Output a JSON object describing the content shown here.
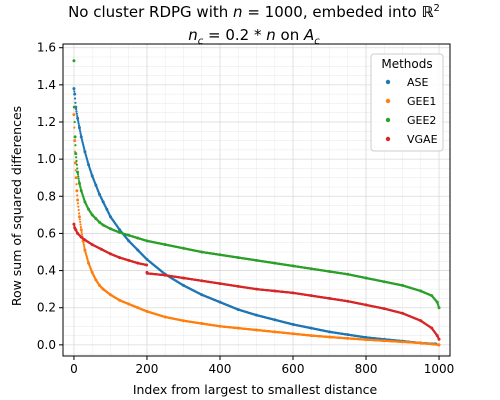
{
  "chart_data": {
    "type": "scatter",
    "title_line1_prefix": "No cluster RDPG with ",
    "title_line1_n": "n",
    "title_line1_eq": " = 1000, embeded into ",
    "title_line1_space": "ℝ",
    "title_line1_sup": "2",
    "title_line2_var": "n",
    "title_line2_sub": "c",
    "title_line2_mid": " = 0.2 * ",
    "title_line2_n": "n",
    "title_line2_on": " on ",
    "title_line2_A": "A",
    "title_line2_Asub": "c",
    "xlabel": "Index from largest to smallest distance",
    "ylabel": "Row sum of squared differences",
    "xlim": [
      -30,
      1030
    ],
    "ylim": [
      -0.06,
      1.62
    ],
    "xticks": [
      0,
      200,
      400,
      600,
      800,
      1000
    ],
    "yticks": [
      0.0,
      0.2,
      0.4,
      0.6,
      0.8,
      1.0,
      1.2,
      1.4,
      1.6
    ],
    "ytick_labels": [
      "0.0",
      "0.2",
      "0.4",
      "0.6",
      "0.8",
      "1.0",
      "1.2",
      "1.4",
      "1.6"
    ],
    "grid": true,
    "legend_title": "Methods",
    "legend_position": "top-right",
    "series": [
      {
        "name": "ASE",
        "color": "#1f77b4",
        "points": [
          [
            0,
            1.38
          ],
          [
            2,
            1.35
          ],
          [
            5,
            1.28
          ],
          [
            10,
            1.22
          ],
          [
            15,
            1.17
          ],
          [
            20,
            1.12
          ],
          [
            30,
            1.04
          ],
          [
            40,
            0.97
          ],
          [
            50,
            0.91
          ],
          [
            60,
            0.86
          ],
          [
            70,
            0.81
          ],
          [
            80,
            0.77
          ],
          [
            90,
            0.73
          ],
          [
            100,
            0.69
          ],
          [
            125,
            0.62
          ],
          [
            150,
            0.56
          ],
          [
            175,
            0.51
          ],
          [
            200,
            0.46
          ],
          [
            250,
            0.38
          ],
          [
            300,
            0.32
          ],
          [
            350,
            0.27
          ],
          [
            400,
            0.23
          ],
          [
            450,
            0.19
          ],
          [
            500,
            0.16
          ],
          [
            550,
            0.135
          ],
          [
            600,
            0.11
          ],
          [
            650,
            0.09
          ],
          [
            700,
            0.07
          ],
          [
            750,
            0.055
          ],
          [
            800,
            0.04
          ],
          [
            850,
            0.03
          ],
          [
            900,
            0.02
          ],
          [
            950,
            0.01
          ],
          [
            990,
            0.005
          ],
          [
            999,
            0.0
          ]
        ]
      },
      {
        "name": "GEE1",
        "color": "#ff7f0e",
        "points": [
          [
            0,
            1.24
          ],
          [
            2,
            1.1
          ],
          [
            4,
            0.98
          ],
          [
            6,
            0.9
          ],
          [
            8,
            0.83
          ],
          [
            10,
            0.78
          ],
          [
            15,
            0.69
          ],
          [
            20,
            0.62
          ],
          [
            25,
            0.56
          ],
          [
            30,
            0.51
          ],
          [
            40,
            0.44
          ],
          [
            50,
            0.39
          ],
          [
            60,
            0.35
          ],
          [
            70,
            0.32
          ],
          [
            80,
            0.3
          ],
          [
            100,
            0.27
          ],
          [
            125,
            0.24
          ],
          [
            150,
            0.22
          ],
          [
            175,
            0.2
          ],
          [
            200,
            0.18
          ],
          [
            250,
            0.15
          ],
          [
            300,
            0.13
          ],
          [
            350,
            0.115
          ],
          [
            400,
            0.1
          ],
          [
            450,
            0.09
          ],
          [
            500,
            0.08
          ],
          [
            550,
            0.07
          ],
          [
            600,
            0.06
          ],
          [
            650,
            0.05
          ],
          [
            700,
            0.042
          ],
          [
            750,
            0.035
          ],
          [
            800,
            0.028
          ],
          [
            850,
            0.022
          ],
          [
            900,
            0.016
          ],
          [
            950,
            0.01
          ],
          [
            1000,
            0.0
          ]
        ]
      },
      {
        "name": "GEE2",
        "color": "#2ca02c",
        "points": [
          [
            0,
            1.53
          ],
          [
            1,
            1.28
          ],
          [
            3,
            1.12
          ],
          [
            5,
            1.03
          ],
          [
            10,
            0.93
          ],
          [
            15,
            0.87
          ],
          [
            20,
            0.83
          ],
          [
            30,
            0.77
          ],
          [
            40,
            0.73
          ],
          [
            50,
            0.7
          ],
          [
            60,
            0.68
          ],
          [
            70,
            0.66
          ],
          [
            80,
            0.645
          ],
          [
            100,
            0.625
          ],
          [
            125,
            0.605
          ],
          [
            150,
            0.59
          ],
          [
            175,
            0.575
          ],
          [
            200,
            0.56
          ],
          [
            250,
            0.54
          ],
          [
            300,
            0.52
          ],
          [
            350,
            0.5
          ],
          [
            400,
            0.485
          ],
          [
            450,
            0.47
          ],
          [
            500,
            0.455
          ],
          [
            550,
            0.44
          ],
          [
            600,
            0.425
          ],
          [
            650,
            0.41
          ],
          [
            700,
            0.395
          ],
          [
            750,
            0.38
          ],
          [
            800,
            0.36
          ],
          [
            850,
            0.34
          ],
          [
            900,
            0.32
          ],
          [
            950,
            0.29
          ],
          [
            980,
            0.265
          ],
          [
            995,
            0.23
          ],
          [
            1000,
            0.2
          ]
        ]
      },
      {
        "name": "VGAE",
        "color": "#d62728",
        "points": [
          [
            0,
            0.65
          ],
          [
            2,
            0.63
          ],
          [
            5,
            0.62
          ],
          [
            10,
            0.6
          ],
          [
            20,
            0.58
          ],
          [
            30,
            0.565
          ],
          [
            50,
            0.54
          ],
          [
            75,
            0.515
          ],
          [
            100,
            0.49
          ],
          [
            125,
            0.47
          ],
          [
            150,
            0.455
          ],
          [
            175,
            0.44
          ],
          [
            199,
            0.43
          ],
          [
            200,
            0.39
          ],
          [
            201,
            0.385
          ],
          [
            250,
            0.375
          ],
          [
            300,
            0.36
          ],
          [
            350,
            0.345
          ],
          [
            400,
            0.33
          ],
          [
            450,
            0.315
          ],
          [
            500,
            0.3
          ],
          [
            550,
            0.29
          ],
          [
            600,
            0.28
          ],
          [
            650,
            0.265
          ],
          [
            700,
            0.25
          ],
          [
            750,
            0.235
          ],
          [
            800,
            0.215
          ],
          [
            850,
            0.195
          ],
          [
            900,
            0.17
          ],
          [
            950,
            0.13
          ],
          [
            980,
            0.09
          ],
          [
            995,
            0.05
          ],
          [
            1000,
            0.03
          ]
        ]
      }
    ]
  }
}
